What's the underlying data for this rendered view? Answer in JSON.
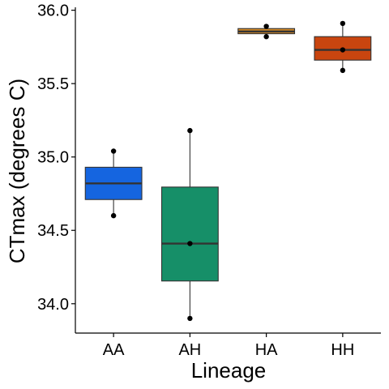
{
  "chart_data": {
    "type": "box",
    "title": "",
    "xlabel": "Lineage",
    "ylabel": "CTmax (degrees C)",
    "ylim": [
      33.8,
      36.02
    ],
    "yticks": [
      34.0,
      34.5,
      35.0,
      35.5,
      36.0
    ],
    "ytick_labels": [
      "34.0",
      "34.5",
      "35.0",
      "35.5",
      "36.0"
    ],
    "grid": false,
    "legend": "none",
    "categories": [
      "AA",
      "AH",
      "HA",
      "HH"
    ],
    "boxes": [
      {
        "category": "AA",
        "color": "#1565e0",
        "whisker_low": 34.6,
        "q1": 34.71,
        "median": 34.82,
        "q3": 34.93,
        "whisker_high": 35.04,
        "points": [
          35.04,
          34.6
        ]
      },
      {
        "category": "AH",
        "color": "#168f68",
        "whisker_low": 33.9,
        "q1": 34.155,
        "median": 34.41,
        "q3": 34.795,
        "whisker_high": 35.18,
        "points": [
          35.18,
          34.41,
          33.9
        ]
      },
      {
        "category": "HA",
        "color": "#d68a25",
        "whisker_low": 35.82,
        "q1": 35.84,
        "median": 35.855,
        "q3": 35.875,
        "whisker_high": 35.89,
        "points": [
          35.89,
          35.82
        ]
      },
      {
        "category": "HH",
        "color": "#c9450f",
        "whisker_low": 35.59,
        "q1": 35.66,
        "median": 35.73,
        "q3": 35.82,
        "whisker_high": 35.91,
        "points": [
          35.91,
          35.73,
          35.59
        ]
      }
    ]
  }
}
